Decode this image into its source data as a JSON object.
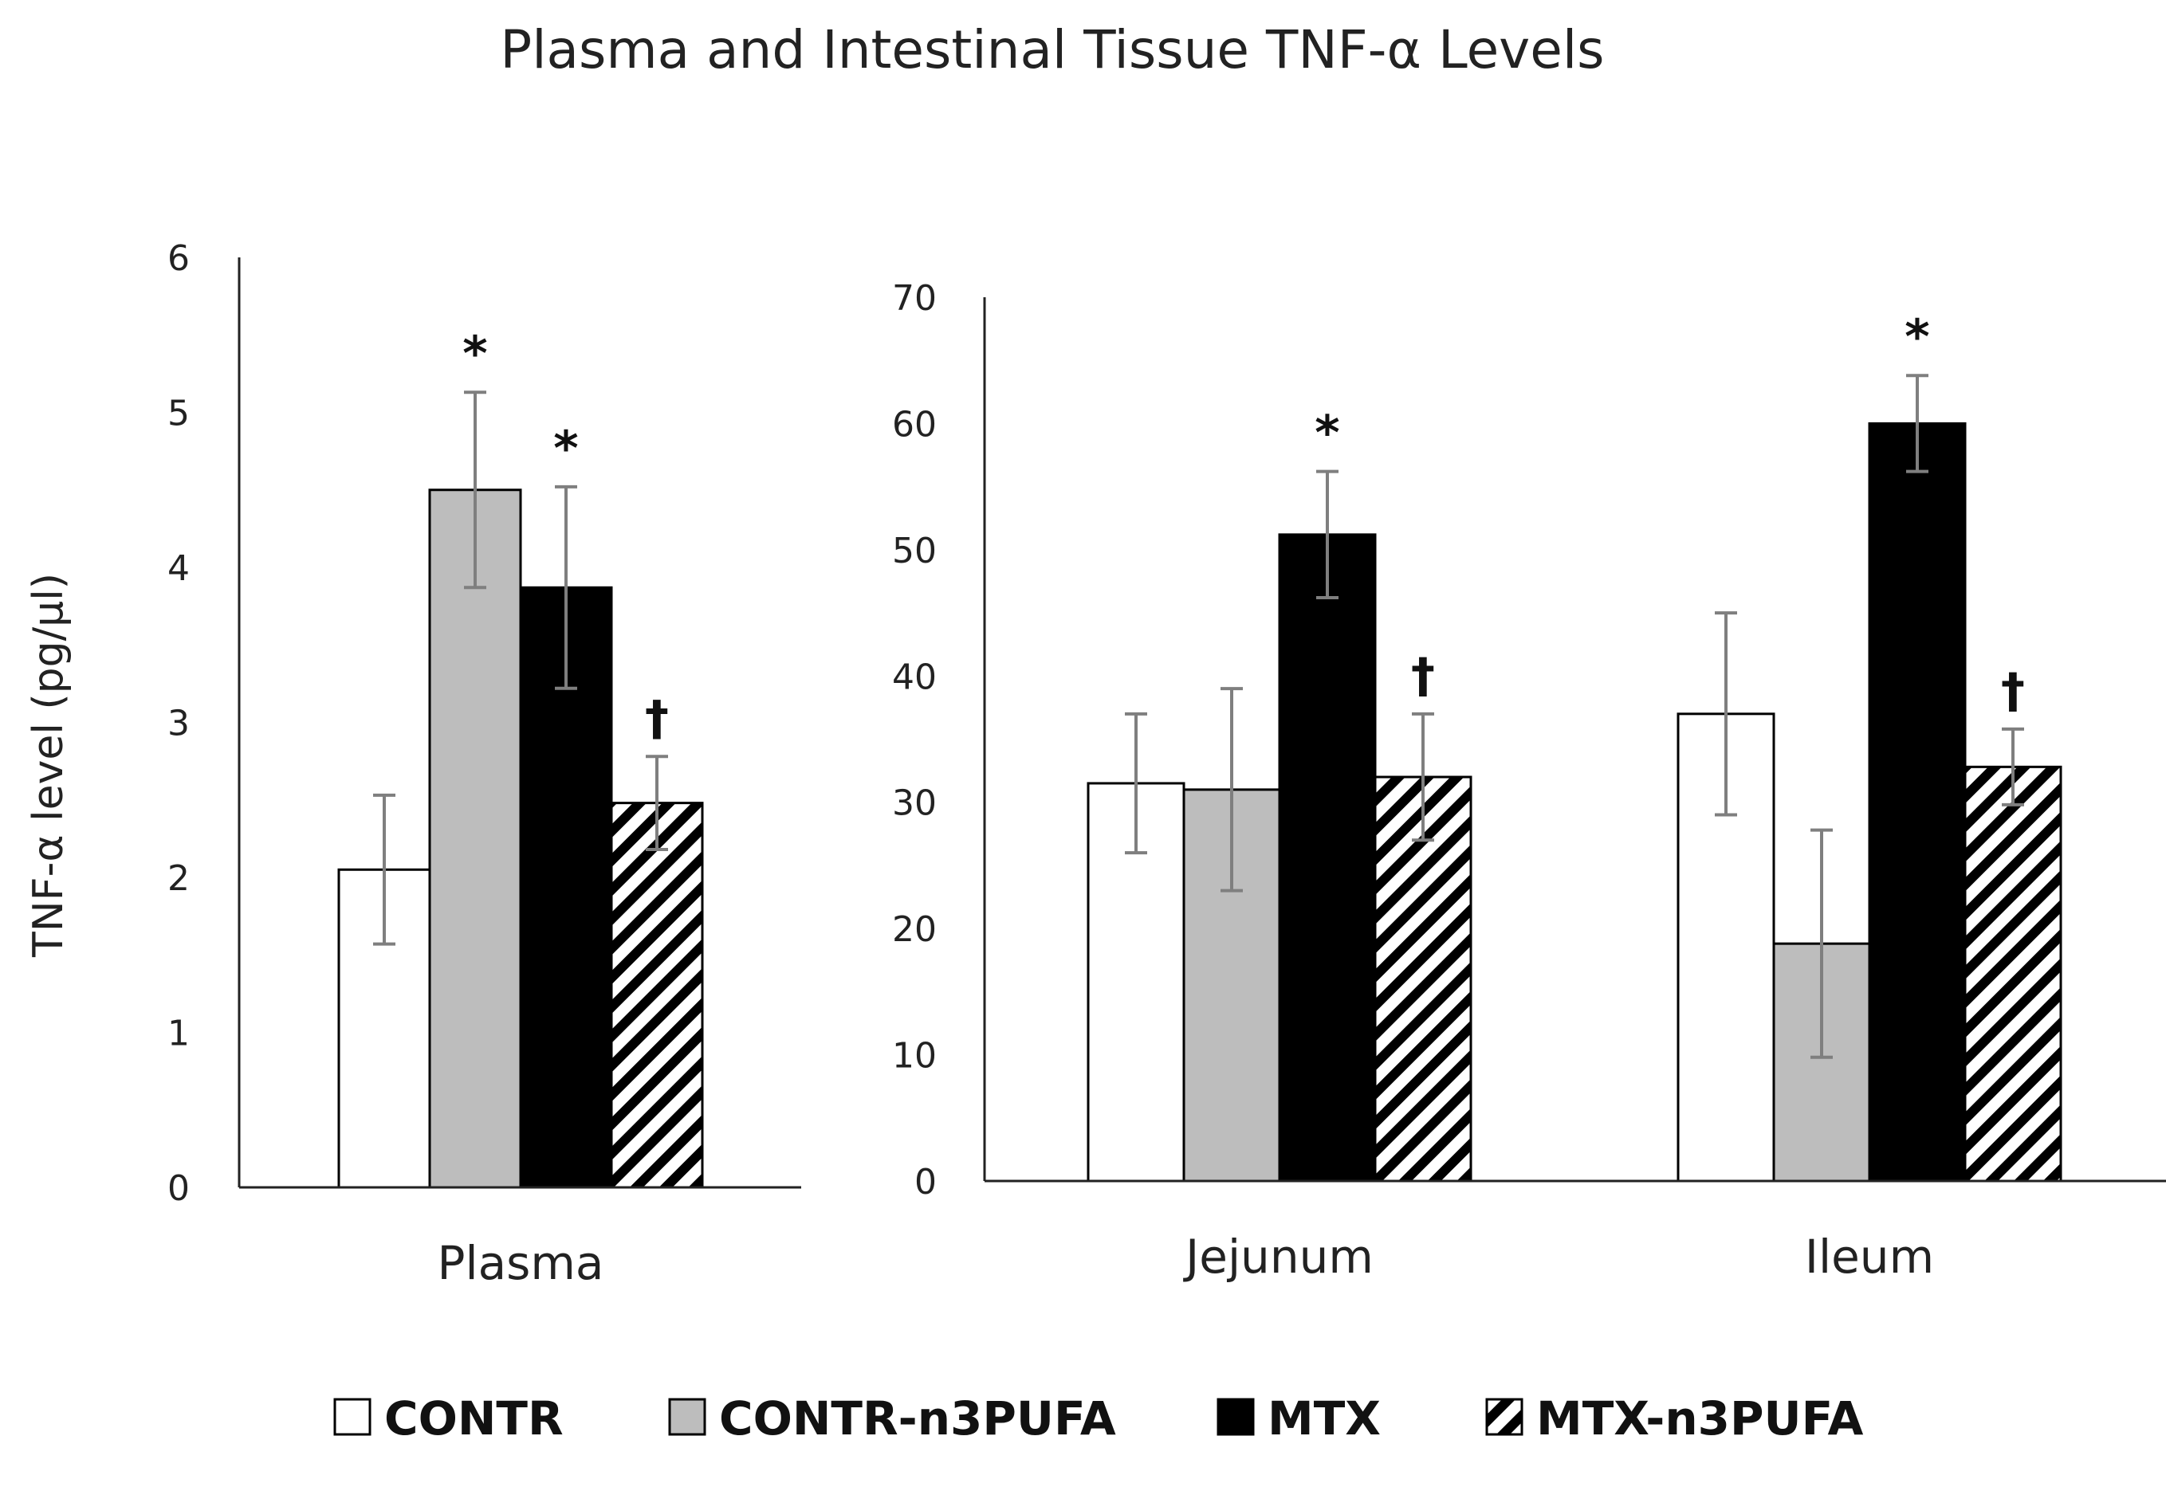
{
  "colors": {
    "CONTR": "#ffffff",
    "CONTR-n3PUFA": "#bdbdbd",
    "MTX": "#000000",
    "MTX-n3PUFA": "hatch",
    "error_bar": "#7f7f7f"
  },
  "chart_data": {
    "type": "bar",
    "title": "Plasma and Intestinal Tissue TNF-α Levels",
    "ylabel": "TNF-α level (pg/µl)",
    "legend": {
      "placement": "bottom",
      "entries": [
        "CONTR",
        "CONTR-n3PUFA",
        "MTX",
        "MTX-n3PUFA"
      ]
    },
    "panels": [
      {
        "ylim": [
          0,
          6
        ],
        "yticks": [
          "0",
          "1",
          "2",
          "3",
          "4",
          "5",
          "6"
        ],
        "categories": [
          "Plasma"
        ],
        "series": [
          {
            "name": "CONTR",
            "values": [
              2.05
            ],
            "errors": [
              0.48
            ],
            "marks": [
              ""
            ]
          },
          {
            "name": "CONTR-n3PUFA",
            "values": [
              4.5
            ],
            "errors": [
              0.63
            ],
            "marks": [
              "*"
            ]
          },
          {
            "name": "MTX",
            "values": [
              3.87
            ],
            "errors": [
              0.65
            ],
            "marks": [
              "*"
            ]
          },
          {
            "name": "MTX-n3PUFA",
            "values": [
              2.48
            ],
            "errors": [
              0.3
            ],
            "marks": [
              "†"
            ]
          }
        ]
      },
      {
        "ylim": [
          0,
          70
        ],
        "yticks": [
          "0",
          "10",
          "20",
          "30",
          "40",
          "50",
          "60",
          "70"
        ],
        "categories": [
          "Jejunum",
          "Ileum"
        ],
        "series": [
          {
            "name": "CONTR",
            "values": [
              31.5,
              37
            ],
            "errors": [
              5.5,
              8
            ],
            "marks": [
              "",
              ""
            ]
          },
          {
            "name": "CONTR-n3PUFA",
            "values": [
              31,
              18.8
            ],
            "errors": [
              8,
              9
            ],
            "marks": [
              "",
              ""
            ]
          },
          {
            "name": "MTX",
            "values": [
              51.2,
              60
            ],
            "errors": [
              5,
              3.8
            ],
            "marks": [
              "*",
              "*"
            ]
          },
          {
            "name": "MTX-n3PUFA",
            "values": [
              32,
              32.8
            ],
            "errors": [
              5,
              3
            ],
            "marks": [
              "†",
              "†"
            ]
          }
        ]
      }
    ]
  }
}
